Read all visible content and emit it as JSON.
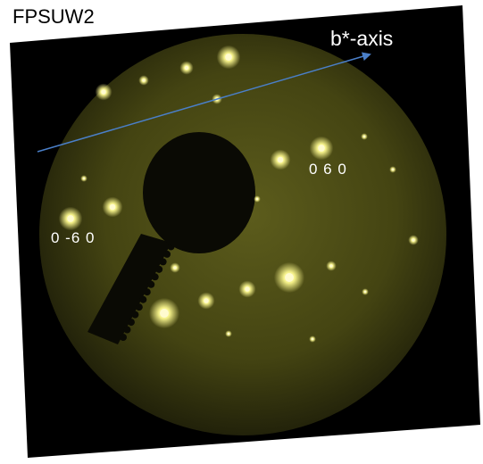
{
  "sample_label": "FPSUW2",
  "axis_label": "b*-axis",
  "spot_labels": {
    "positive": "0 6 0",
    "negative": "0 -6 0"
  },
  "colors": {
    "background": "#000000",
    "screen_glow": "#5a5a18",
    "spot": "#f6f28a",
    "axis_arrow": "#4a7fc8",
    "label_text": "#ffffff"
  }
}
